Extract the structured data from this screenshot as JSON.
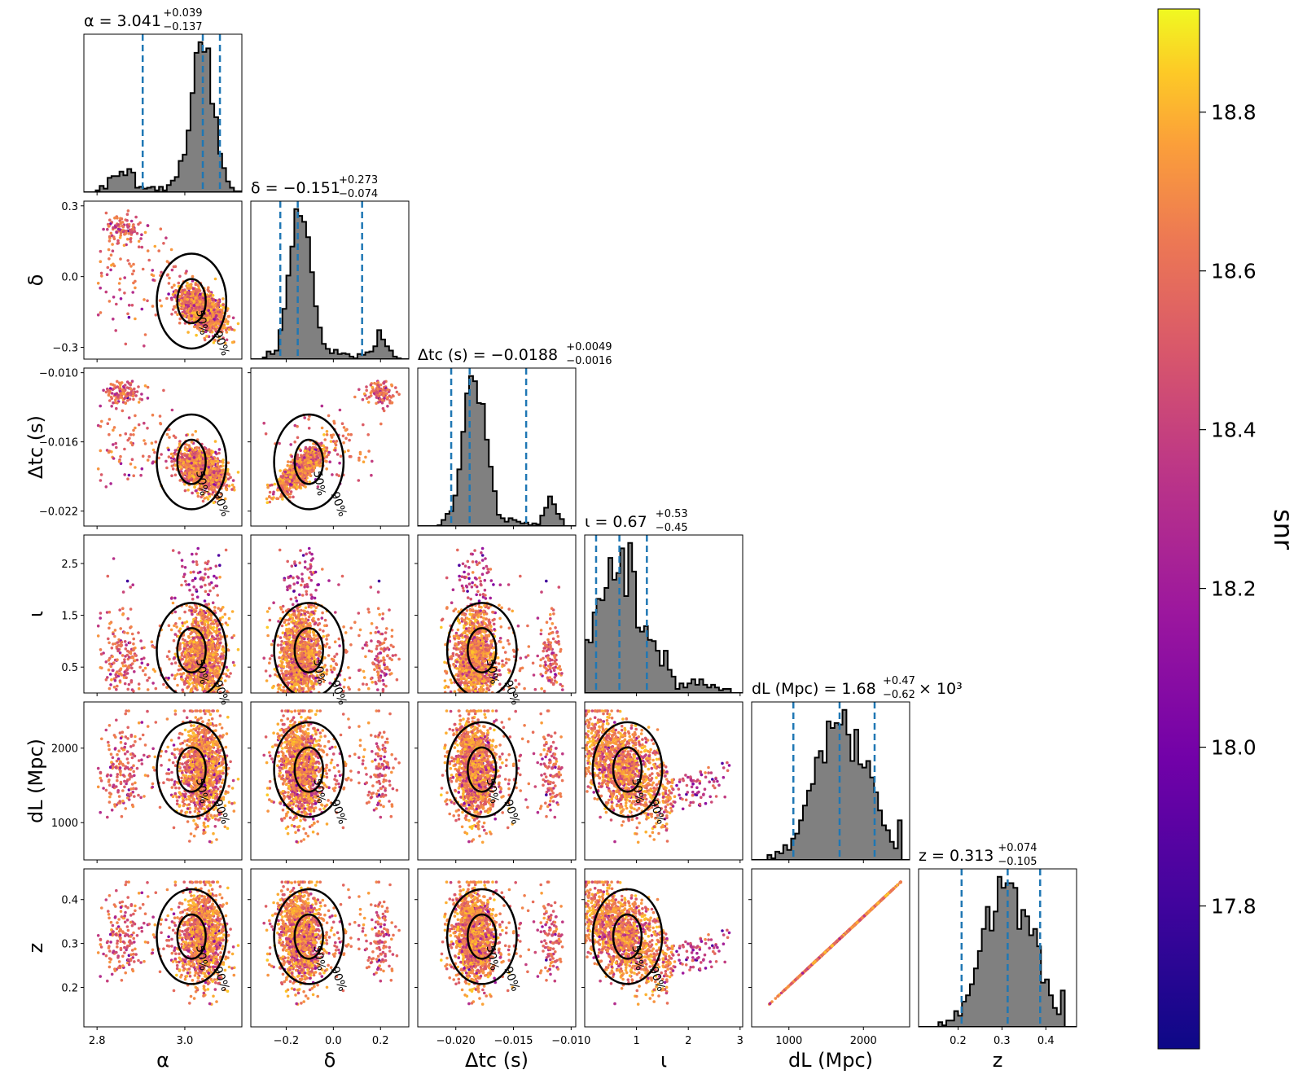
{
  "chart_data": {
    "type": "scatter",
    "plot_kind": "corner plot",
    "colorbar": {
      "label": "snr",
      "range": [
        17.62,
        18.93
      ],
      "ticks": [
        17.8,
        18.0,
        18.2,
        18.4,
        18.6,
        18.8
      ],
      "colormap": "plasma"
    },
    "parameters": [
      {
        "key": "alpha",
        "symbol": "α",
        "axis_label": "α",
        "range": [
          2.77,
          3.13
        ],
        "ticks": [
          2.8,
          3.0
        ],
        "tick_labels": [
          "2.8",
          "3.0"
        ],
        "y_ticks": [],
        "title": "α = 3.041",
        "sup": "+0.039",
        "sub": "−0.137",
        "suffix": "",
        "quantiles": [
          2.904,
          3.041,
          3.08
        ]
      },
      {
        "key": "delta",
        "symbol": "δ",
        "axis_label": "δ",
        "range": [
          -0.35,
          0.32
        ],
        "ticks": [
          -0.2,
          0.0,
          0.2
        ],
        "tick_labels": [
          "−0.2",
          "0.0",
          "0.2"
        ],
        "y_ticks": [
          -0.3,
          0.0,
          0.3
        ],
        "y_tick_labels": [
          "−0.3",
          "0.0",
          "0.3"
        ],
        "title": "δ = −0.151",
        "sup": "+0.273",
        "sub": "−0.074",
        "suffix": "",
        "quantiles": [
          -0.225,
          -0.151,
          0.122
        ]
      },
      {
        "key": "dtc",
        "symbol": "Δt_c (s)",
        "axis_label": "Δtc (s)",
        "range": [
          -0.0233,
          -0.0096
        ],
        "ticks": [
          -0.02,
          -0.015,
          -0.01
        ],
        "tick_labels": [
          "−0.020",
          "−0.015",
          "−0.010"
        ],
        "y_ticks": [
          -0.022,
          -0.016,
          -0.01
        ],
        "y_tick_labels": [
          "−0.022",
          "−0.016",
          "−0.010"
        ],
        "title": "Δtc (s) = −0.0188",
        "sup": "+0.0049",
        "sub": "−0.0016",
        "suffix": "",
        "quantiles": [
          -0.0204,
          -0.0188,
          -0.0139
        ]
      },
      {
        "key": "iota",
        "symbol": "ι",
        "axis_label": "ι",
        "range": [
          0.0,
          3.05
        ],
        "ticks": [
          1,
          2,
          3
        ],
        "tick_labels": [
          "1",
          "2",
          "3"
        ],
        "y_ticks": [
          0.5,
          1.5,
          2.5
        ],
        "y_tick_labels": [
          "0.5",
          "1.5",
          "2.5"
        ],
        "title": "ι = 0.67",
        "sup": "+0.53",
        "sub": "−0.45",
        "suffix": "",
        "quantiles": [
          0.22,
          0.67,
          1.2
        ]
      },
      {
        "key": "dL",
        "symbol": "d_L (Mpc)",
        "axis_label": "dL (Mpc)",
        "range": [
          500,
          2620
        ],
        "ticks": [
          1000,
          2000
        ],
        "tick_labels": [
          "1000",
          "2000"
        ],
        "y_ticks": [
          1000,
          2000
        ],
        "y_tick_labels": [
          "1000",
          "2000"
        ],
        "title": "dL (Mpc) = 1.68",
        "sup": "+0.47",
        "sub": "−0.62",
        "suffix": "× 10³",
        "quantiles": [
          1060,
          1680,
          2150
        ]
      },
      {
        "key": "z",
        "symbol": "z",
        "axis_label": "z",
        "range": [
          0.11,
          0.47
        ],
        "ticks": [
          0.2,
          0.3,
          0.4
        ],
        "tick_labels": [
          "0.2",
          "0.3",
          "0.4"
        ],
        "y_ticks": [
          0.2,
          0.3,
          0.4
        ],
        "y_tick_labels": [
          "0.2",
          "0.3",
          "0.4"
        ],
        "title": "z = 0.313",
        "sup": "+0.074",
        "sub": "−0.105",
        "suffix": "",
        "quantiles": [
          0.208,
          0.313,
          0.387
        ]
      }
    ],
    "contour_labels": [
      "50%",
      "90%"
    ],
    "histogram_color": "#808080",
    "quantile_line_color": "#1f77b4"
  }
}
